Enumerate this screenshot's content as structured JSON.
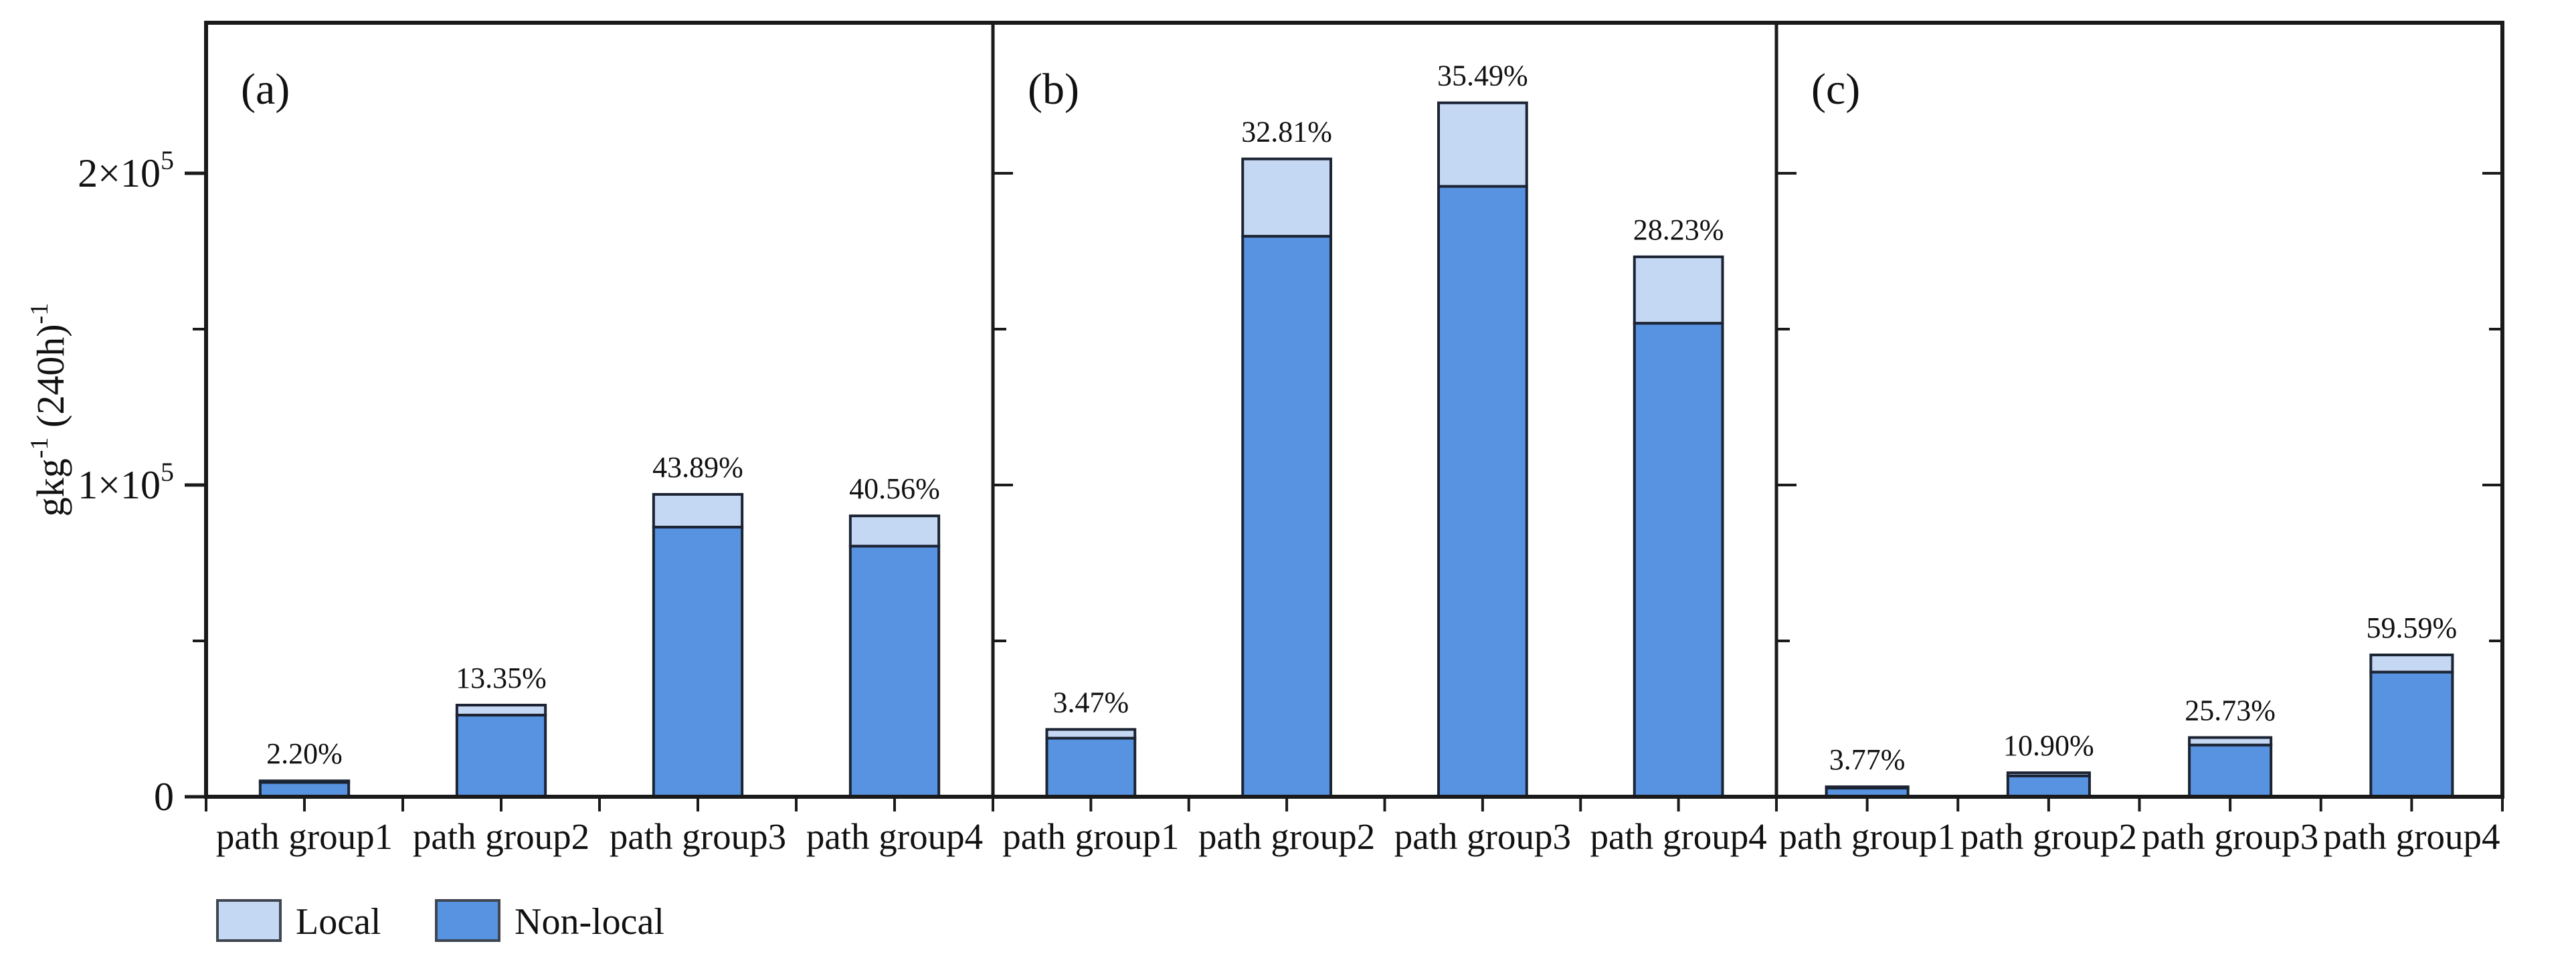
{
  "figure": {
    "background": "#ffffff",
    "y_axis": {
      "label_plain": "gkg-1 (240h)-1",
      "label_parts": [
        {
          "text": "gkg",
          "sup": false
        },
        {
          "text": "-1",
          "sup": true
        },
        {
          "text": " (240h)",
          "sup": false
        },
        {
          "text": "-1",
          "sup": true
        }
      ]
    },
    "legend": {
      "items": [
        {
          "label": "Local",
          "color": "#c5d8f3"
        },
        {
          "label": "Non-local",
          "color": "#5793e0"
        }
      ]
    }
  },
  "chart_data": {
    "type": "bar",
    "stacked": true,
    "title": "",
    "xlabel": "",
    "ylabel": "gkg-1 (240h)-1",
    "categories": [
      "path group1",
      "path group2",
      "path group3",
      "path group4"
    ],
    "ylim": [
      0,
      248000
    ],
    "grid": false,
    "legend_position": "bottom-left",
    "yticks": [
      {
        "value": 0,
        "base": "0",
        "exp": ""
      },
      {
        "value": 100000,
        "base": "1×10",
        "exp": "5"
      },
      {
        "value": 200000,
        "base": "2×10",
        "exp": "5"
      }
    ],
    "yticks_minor": [
      50000,
      150000
    ],
    "series_names": [
      "Local",
      "Non-local"
    ],
    "panels": [
      {
        "label": "(a)",
        "series": [
          {
            "name": "Local",
            "values": [
              500,
              3200,
              10500,
              9700
            ]
          },
          {
            "name": "Non-local",
            "values": [
              4600,
              26200,
              86500,
              80400
            ]
          }
        ],
        "annotations": [
          "2.20%",
          "13.35%",
          "43.89%",
          "40.56%"
        ]
      },
      {
        "label": "(b)",
        "series": [
          {
            "name": "Local",
            "values": [
              2800,
              24800,
              26800,
              21300
            ]
          },
          {
            "name": "Non-local",
            "values": [
              18800,
              179800,
              195800,
              151900
            ]
          }
        ],
        "annotations": [
          "3.47%",
          "32.81%",
          "35.49%",
          "28.23%"
        ]
      },
      {
        "label": "(c)",
        "series": [
          {
            "name": "Local",
            "values": [
              350,
              1000,
              2400,
              5500
            ]
          },
          {
            "name": "Non-local",
            "values": [
              2850,
              6700,
              16600,
              40000
            ]
          }
        ],
        "annotations": [
          "3.77%",
          "10.90%",
          "25.73%",
          "59.59%"
        ]
      }
    ],
    "colors": {
      "local_fill": "#c5d8f3",
      "nonlocal_fill": "#5793e0",
      "bar_edge": "#1c2434",
      "axis": "#1a1a1a",
      "text": "#111111",
      "legend_edge": "#3f4651"
    }
  }
}
